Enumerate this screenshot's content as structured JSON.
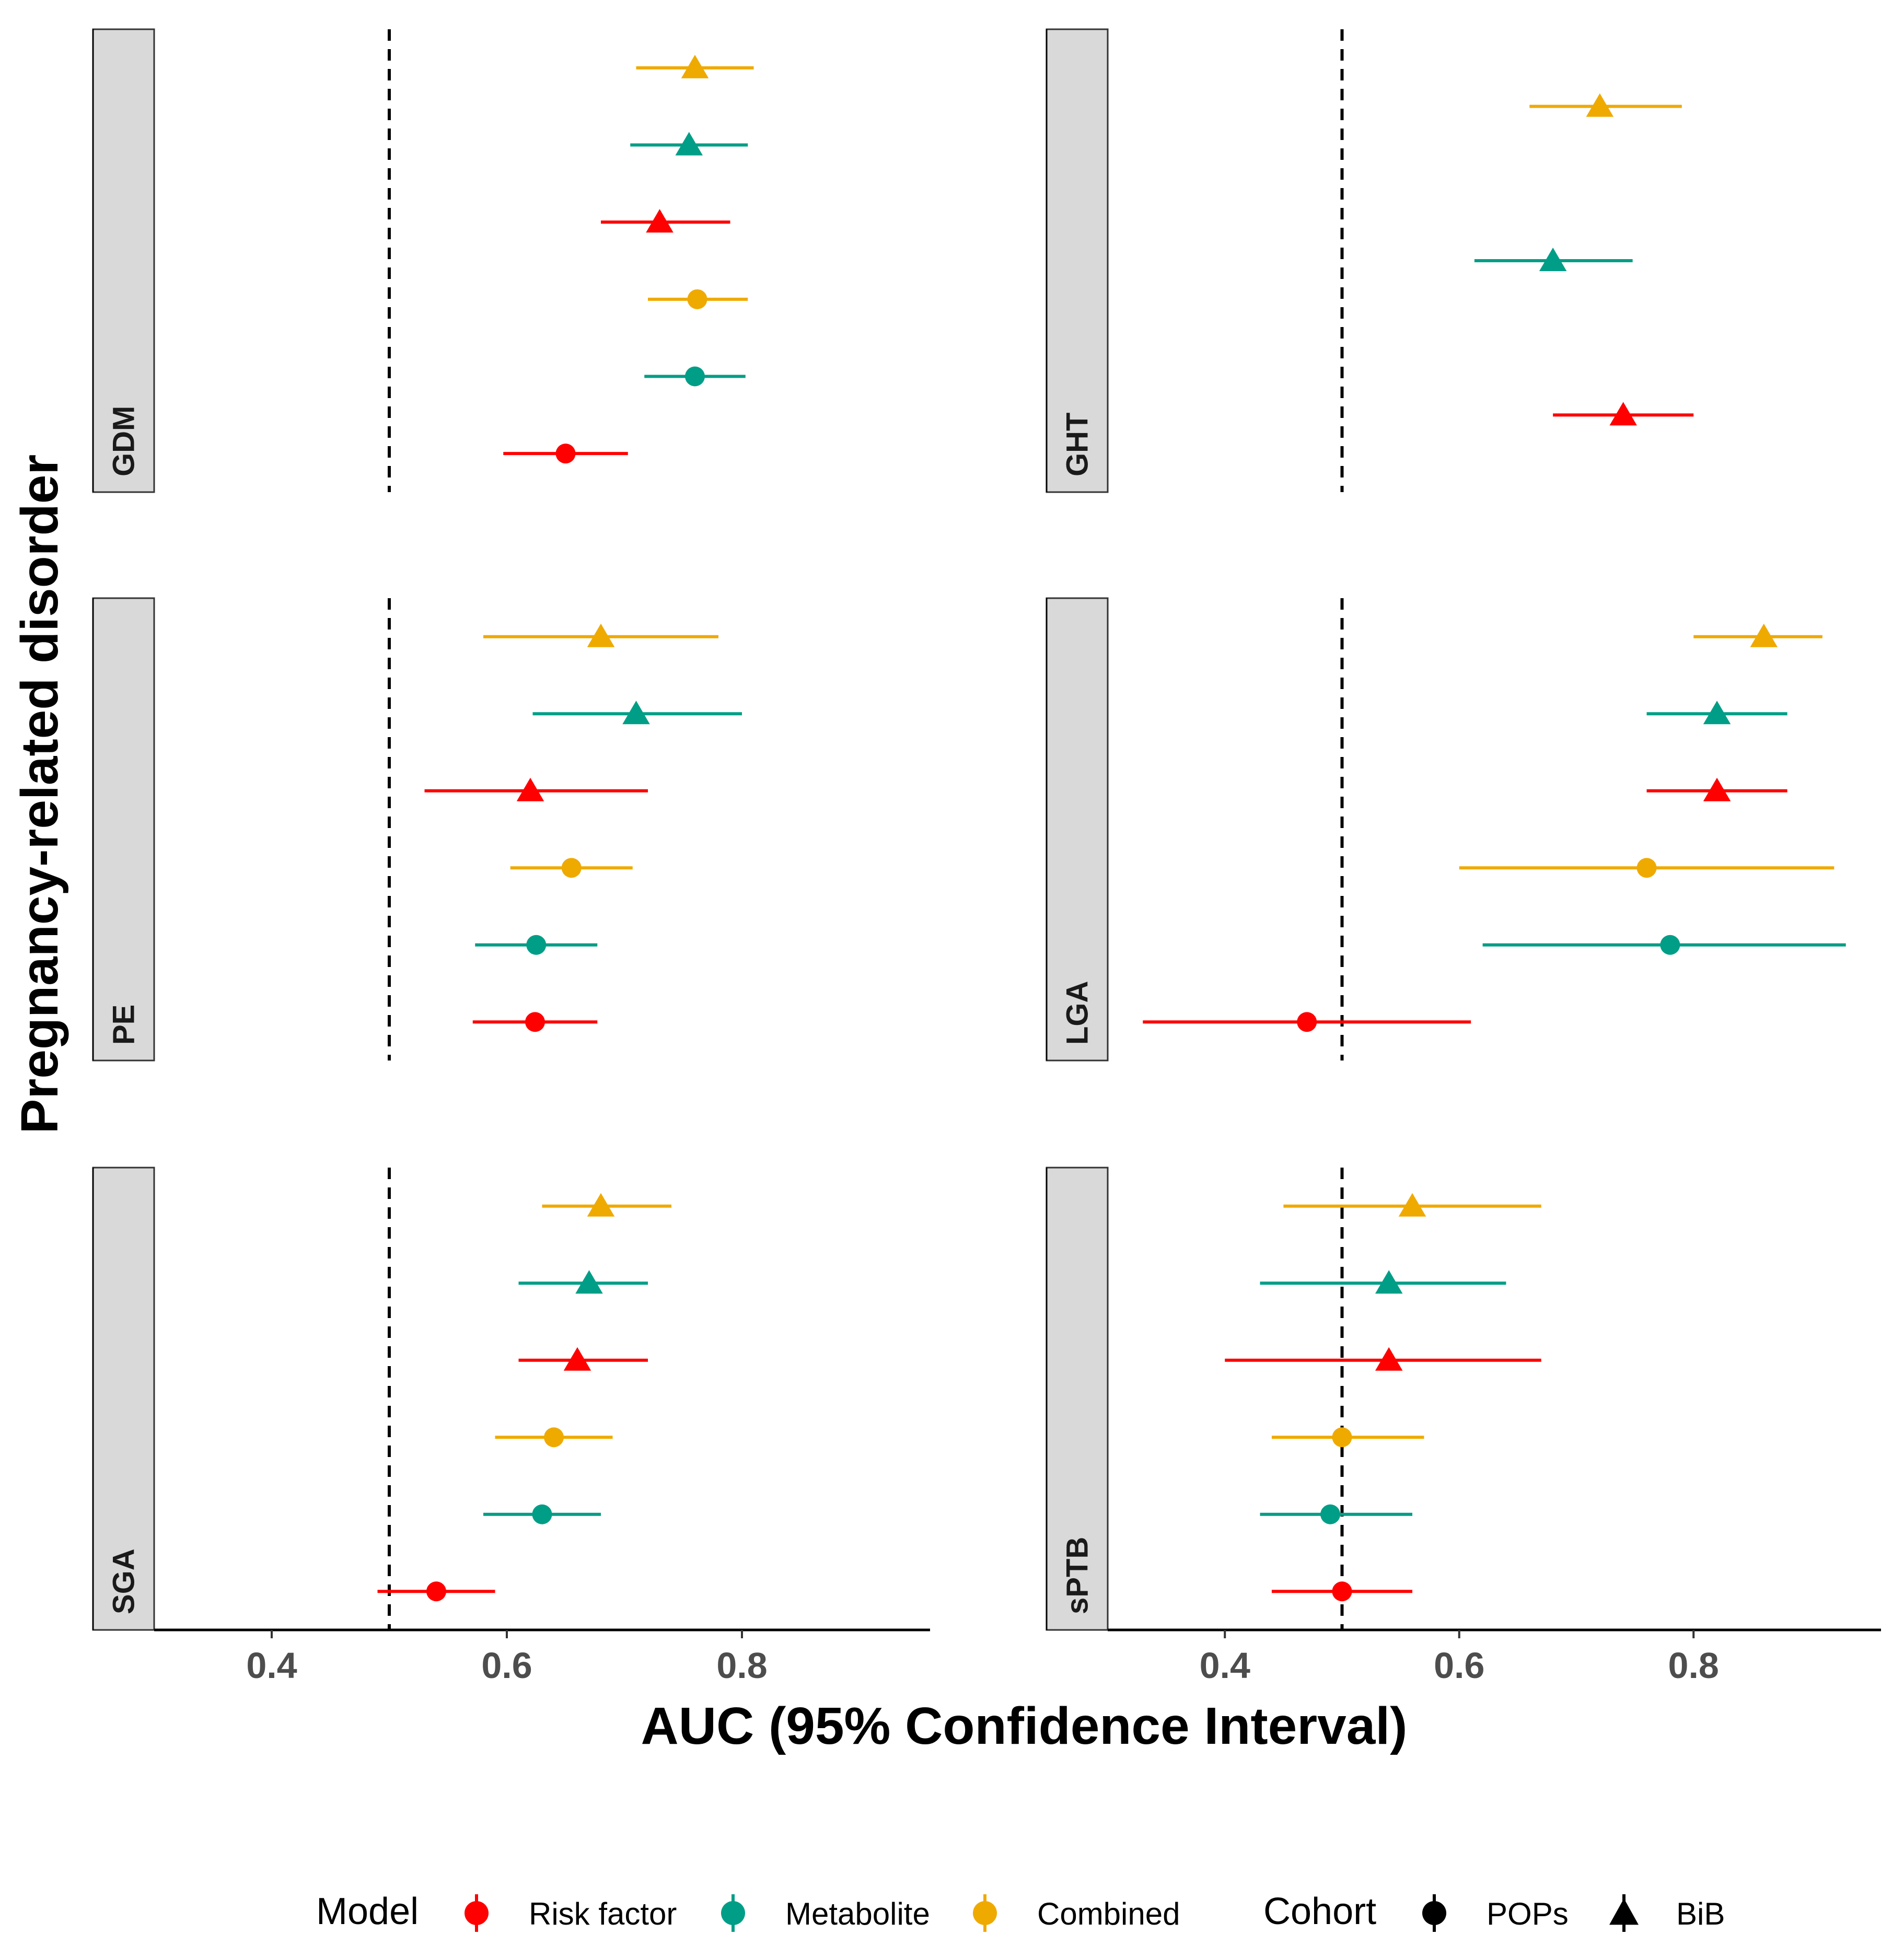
{
  "chart_data": {
    "type": "scatter",
    "subtype": "forest-plot",
    "xlabel": "AUC (95% Confidence Interval)",
    "ylabel": "Pregnancy-related disorder",
    "xlim": [
      0.3,
      0.96
    ],
    "xticks": [
      "0.4",
      "0.6",
      "0.8"
    ],
    "reference_line": 0.5,
    "grid": false,
    "legend_position": "bottom",
    "legend": {
      "model_title": "Model",
      "models": [
        {
          "name": "Risk factor",
          "color": "#FF0000"
        },
        {
          "name": "Metabolite",
          "color": "#009E87"
        },
        {
          "name": "Combined",
          "color": "#EFAA00"
        }
      ],
      "cohort_title": "Cohort",
      "cohorts": [
        {
          "name": "POPs",
          "shape": "circle"
        },
        {
          "name": "BiB",
          "shape": "triangle"
        }
      ]
    },
    "rows": [
      "Combined",
      "Metabolite",
      "Risk factor",
      "Combined",
      "Metabolite",
      "Risk factor"
    ],
    "panels": [
      {
        "label": "GDM",
        "points": [
          {
            "cohort": "BiB",
            "model": "Combined",
            "auc": 0.76,
            "lo": 0.71,
            "hi": 0.81
          },
          {
            "cohort": "BiB",
            "model": "Metabolite",
            "auc": 0.755,
            "lo": 0.705,
            "hi": 0.805
          },
          {
            "cohort": "BiB",
            "model": "Risk factor",
            "auc": 0.73,
            "lo": 0.68,
            "hi": 0.79
          },
          {
            "cohort": "POPs",
            "model": "Combined",
            "auc": 0.762,
            "lo": 0.72,
            "hi": 0.805
          },
          {
            "cohort": "POPs",
            "model": "Metabolite",
            "auc": 0.76,
            "lo": 0.717,
            "hi": 0.803
          },
          {
            "cohort": "POPs",
            "model": "Risk factor",
            "auc": 0.65,
            "lo": 0.597,
            "hi": 0.703
          }
        ]
      },
      {
        "label": "GHT",
        "points": [
          {
            "cohort": "BiB",
            "model": "Combined",
            "auc": 0.72,
            "lo": 0.66,
            "hi": 0.79,
            "row": 0.5
          },
          {
            "cohort": "BiB",
            "model": "Metabolite",
            "auc": 0.68,
            "lo": 0.613,
            "hi": 0.748,
            "row": 2.5
          },
          {
            "cohort": "BiB",
            "model": "Risk factor",
            "auc": 0.74,
            "lo": 0.68,
            "hi": 0.8,
            "row": 4.5
          }
        ]
      },
      {
        "label": "PE",
        "points": [
          {
            "cohort": "BiB",
            "model": "Combined",
            "auc": 0.68,
            "lo": 0.58,
            "hi": 0.78
          },
          {
            "cohort": "BiB",
            "model": "Metabolite",
            "auc": 0.71,
            "lo": 0.622,
            "hi": 0.8
          },
          {
            "cohort": "BiB",
            "model": "Risk factor",
            "auc": 0.62,
            "lo": 0.53,
            "hi": 0.72
          },
          {
            "cohort": "POPs",
            "model": "Combined",
            "auc": 0.655,
            "lo": 0.603,
            "hi": 0.707
          },
          {
            "cohort": "POPs",
            "model": "Metabolite",
            "auc": 0.625,
            "lo": 0.573,
            "hi": 0.677
          },
          {
            "cohort": "POPs",
            "model": "Risk factor",
            "auc": 0.624,
            "lo": 0.571,
            "hi": 0.677
          }
        ]
      },
      {
        "label": "LGA",
        "points": [
          {
            "cohort": "BiB",
            "model": "Combined",
            "auc": 0.86,
            "lo": 0.8,
            "hi": 0.91
          },
          {
            "cohort": "BiB",
            "model": "Metabolite",
            "auc": 0.82,
            "lo": 0.76,
            "hi": 0.88
          },
          {
            "cohort": "BiB",
            "model": "Risk factor",
            "auc": 0.82,
            "lo": 0.76,
            "hi": 0.88
          },
          {
            "cohort": "POPs",
            "model": "Combined",
            "auc": 0.76,
            "lo": 0.6,
            "hi": 0.92
          },
          {
            "cohort": "POPs",
            "model": "Metabolite",
            "auc": 0.78,
            "lo": 0.62,
            "hi": 0.93
          },
          {
            "cohort": "POPs",
            "model": "Risk factor",
            "auc": 0.47,
            "lo": 0.33,
            "hi": 0.61
          }
        ]
      },
      {
        "label": "SGA",
        "points": [
          {
            "cohort": "BiB",
            "model": "Combined",
            "auc": 0.68,
            "lo": 0.63,
            "hi": 0.74
          },
          {
            "cohort": "BiB",
            "model": "Metabolite",
            "auc": 0.67,
            "lo": 0.61,
            "hi": 0.72
          },
          {
            "cohort": "BiB",
            "model": "Risk factor",
            "auc": 0.66,
            "lo": 0.61,
            "hi": 0.72
          },
          {
            "cohort": "POPs",
            "model": "Combined",
            "auc": 0.64,
            "lo": 0.59,
            "hi": 0.69
          },
          {
            "cohort": "POPs",
            "model": "Metabolite",
            "auc": 0.63,
            "lo": 0.58,
            "hi": 0.68
          },
          {
            "cohort": "POPs",
            "model": "Risk factor",
            "auc": 0.54,
            "lo": 0.49,
            "hi": 0.59
          }
        ]
      },
      {
        "label": "sPTB",
        "points": [
          {
            "cohort": "BiB",
            "model": "Combined",
            "auc": 0.56,
            "lo": 0.45,
            "hi": 0.67
          },
          {
            "cohort": "BiB",
            "model": "Metabolite",
            "auc": 0.54,
            "lo": 0.43,
            "hi": 0.64
          },
          {
            "cohort": "BiB",
            "model": "Risk factor",
            "auc": 0.54,
            "lo": 0.4,
            "hi": 0.67
          },
          {
            "cohort": "POPs",
            "model": "Combined",
            "auc": 0.5,
            "lo": 0.44,
            "hi": 0.57
          },
          {
            "cohort": "POPs",
            "model": "Metabolite",
            "auc": 0.49,
            "lo": 0.43,
            "hi": 0.56
          },
          {
            "cohort": "POPs",
            "model": "Risk factor",
            "auc": 0.5,
            "lo": 0.44,
            "hi": 0.56
          }
        ]
      }
    ]
  }
}
